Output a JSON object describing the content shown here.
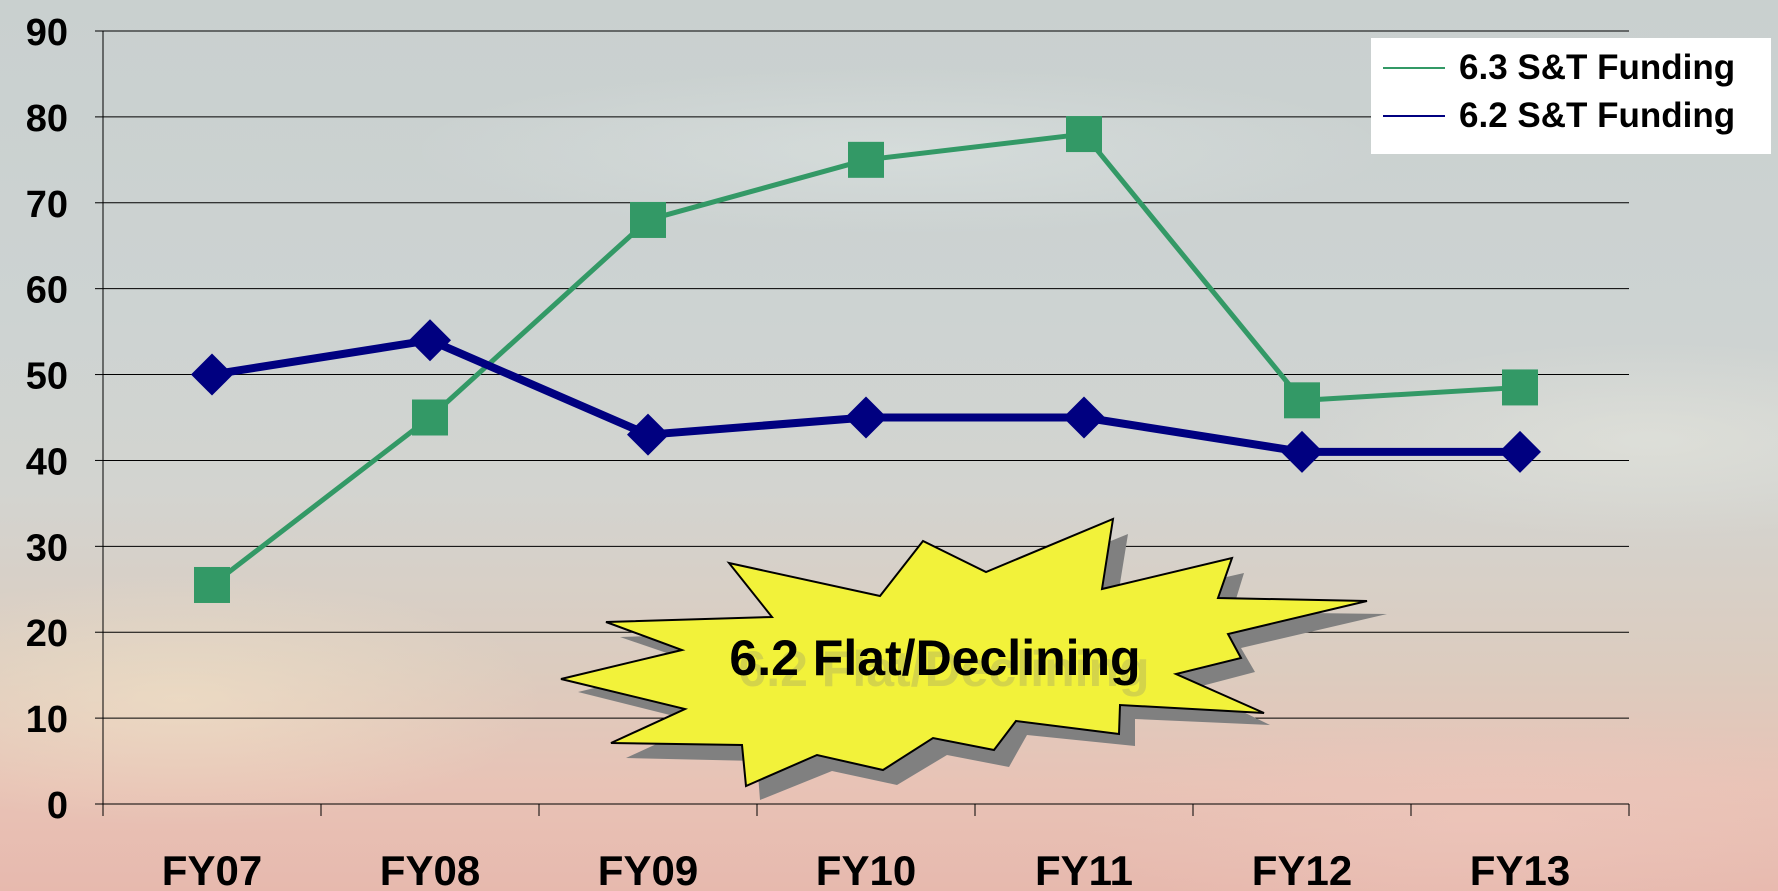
{
  "chart_data": {
    "type": "line",
    "categories": [
      "FY07",
      "FY08",
      "FY09",
      "FY10",
      "FY11",
      "FY12",
      "FY13"
    ],
    "series": [
      {
        "name": "6.3 S&T Funding",
        "values": [
          25.5,
          45,
          68,
          75,
          78,
          47,
          48.5
        ],
        "color": "#339966",
        "marker": "square"
      },
      {
        "name": "6.2 S&T Funding",
        "values": [
          50,
          54,
          43,
          45,
          45,
          41,
          41
        ],
        "color": "#000080",
        "marker": "diamond"
      }
    ],
    "yticks": [
      0,
      10,
      20,
      30,
      40,
      50,
      60,
      70,
      80,
      90
    ],
    "ylim": [
      0,
      90
    ],
    "grid": true,
    "legend_position": "top-right",
    "annotation": {
      "text": "6.2 Flat/Declining",
      "shape": "starburst",
      "fill": "#f2f23a"
    }
  }
}
